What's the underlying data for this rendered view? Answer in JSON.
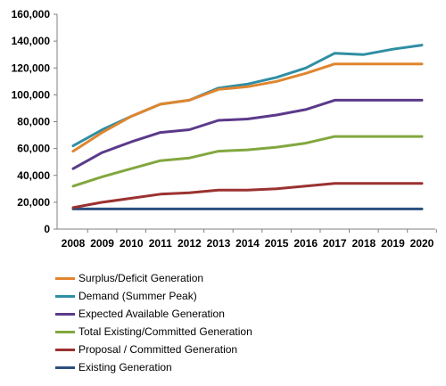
{
  "chart_data": {
    "type": "line",
    "x": [
      "2008",
      "2009",
      "2010",
      "2011",
      "2012",
      "2013",
      "2014",
      "2015",
      "2016",
      "2017",
      "2018",
      "2019",
      "2020"
    ],
    "ylim": [
      0,
      160000
    ],
    "y_ticks": [
      "0",
      "20,000",
      "40,000",
      "60,000",
      "80,000",
      "100,000",
      "120,000",
      "140,000",
      "160,000"
    ],
    "grid": false,
    "legend_position": "bottom",
    "series": [
      {
        "name": "Surplus/Deficit Generation",
        "color": "#e0852f",
        "values": [
          58000,
          72000,
          84000,
          93000,
          96000,
          104000,
          106000,
          110000,
          116000,
          123000,
          123000,
          123000,
          123000
        ]
      },
      {
        "name": "Demand (Summer Peak)",
        "color": "#2f8ea4",
        "values": [
          62000,
          74000,
          84000,
          93000,
          96000,
          105000,
          108000,
          113000,
          120000,
          131000,
          130000,
          134000,
          137000
        ]
      },
      {
        "name": "Expected Available Generation",
        "color": "#5b3a8a",
        "values": [
          45000,
          57000,
          65000,
          72000,
          74000,
          81000,
          82000,
          85000,
          89000,
          96000,
          96000,
          96000,
          96000
        ]
      },
      {
        "name": "Total Existing/Committed  Generation",
        "color": "#82a73f",
        "values": [
          32000,
          39000,
          45000,
          51000,
          53000,
          58000,
          59000,
          61000,
          64000,
          69000,
          69000,
          69000,
          69000
        ]
      },
      {
        "name": "Proposal / Committed  Generation",
        "color": "#9a3230",
        "values": [
          16000,
          20000,
          23000,
          26000,
          27000,
          29000,
          29000,
          30000,
          32000,
          34000,
          34000,
          34000,
          34000
        ]
      },
      {
        "name": "Existing Generation",
        "color": "#2b4f7e",
        "values": [
          15000,
          15000,
          15000,
          15000,
          15000,
          15000,
          15000,
          15000,
          15000,
          15000,
          15000,
          15000,
          15000
        ]
      }
    ]
  }
}
